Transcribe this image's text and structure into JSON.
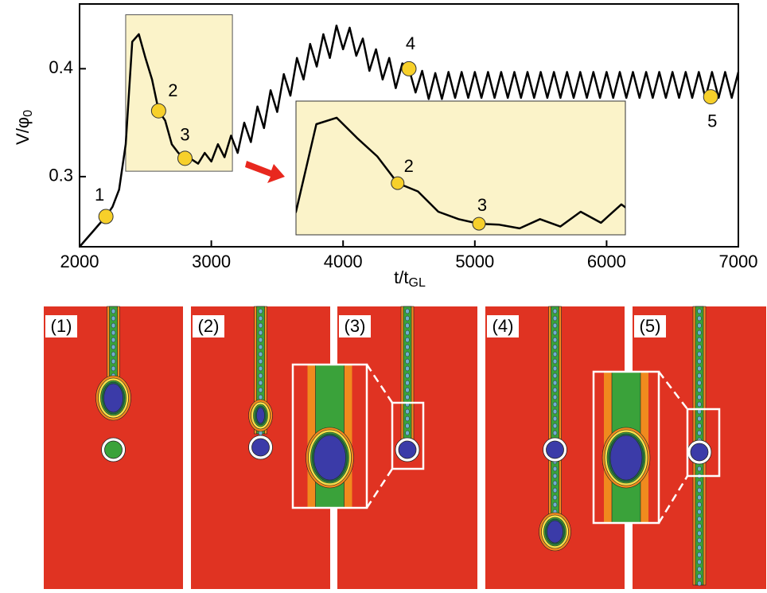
{
  "chart_data": {
    "type": "line",
    "ylabel": {
      "text": "V/φ",
      "sub": "0"
    },
    "xlabel": {
      "text": "t/t",
      "sub": "GL"
    },
    "xlim": [
      2000,
      7000
    ],
    "ylim": [
      0.235,
      0.46
    ],
    "xticks": [
      2000,
      3000,
      4000,
      5000,
      6000,
      7000
    ],
    "yticks": [
      0.3,
      0.4
    ],
    "x": [
      2000,
      2050,
      2100,
      2150,
      2200,
      2250,
      2300,
      2350,
      2400,
      2450,
      2500,
      2550,
      2600,
      2650,
      2700,
      2750,
      2800,
      2850,
      2900,
      2950,
      3000,
      3050,
      3100,
      3150,
      3200,
      3250,
      3300,
      3350,
      3400,
      3450,
      3500,
      3550,
      3600,
      3650,
      3700,
      3750,
      3800,
      3850,
      3900,
      3950,
      4000,
      4050,
      4100,
      4150,
      4200,
      4250,
      4300,
      4350,
      4400,
      4450,
      4500,
      4550,
      4600,
      4650,
      4700,
      4750,
      4800,
      4850,
      4900,
      4950,
      5000,
      5050,
      5100,
      5150,
      5200,
      5250,
      5300,
      5350,
      5400,
      5450,
      5500,
      5550,
      5600,
      5650,
      5700,
      5750,
      5800,
      5850,
      5900,
      5950,
      6000,
      6050,
      6100,
      6150,
      6200,
      6250,
      6300,
      6350,
      6400,
      6450,
      6500,
      6550,
      6600,
      6650,
      6700,
      6750,
      6800,
      6850,
      6900,
      6950,
      7000
    ],
    "series": [
      {
        "color": "#000000",
        "values": [
          0.235,
          0.242,
          0.249,
          0.256,
          0.263,
          0.272,
          0.288,
          0.33,
          0.425,
          0.432,
          0.41,
          0.39,
          0.361,
          0.352,
          0.33,
          0.322,
          0.317,
          0.316,
          0.312,
          0.322,
          0.314,
          0.33,
          0.318,
          0.338,
          0.322,
          0.35,
          0.332,
          0.365,
          0.345,
          0.38,
          0.36,
          0.395,
          0.375,
          0.41,
          0.39,
          0.423,
          0.402,
          0.432,
          0.41,
          0.44,
          0.418,
          0.438,
          0.412,
          0.428,
          0.398,
          0.418,
          0.39,
          0.41,
          0.382,
          0.405,
          0.4,
          0.378,
          0.398,
          0.372,
          0.396,
          0.372,
          0.397,
          0.373,
          0.397,
          0.373,
          0.397,
          0.373,
          0.397,
          0.373,
          0.397,
          0.373,
          0.397,
          0.373,
          0.397,
          0.373,
          0.397,
          0.373,
          0.397,
          0.373,
          0.397,
          0.373,
          0.397,
          0.373,
          0.397,
          0.373,
          0.397,
          0.373,
          0.397,
          0.373,
          0.397,
          0.373,
          0.397,
          0.373,
          0.397,
          0.373,
          0.397,
          0.373,
          0.397,
          0.373,
          0.397,
          0.373,
          0.397,
          0.373,
          0.397,
          0.373,
          0.397
        ]
      }
    ],
    "points": {
      "color": "#f7d02a",
      "labels": [
        "1",
        "2",
        "3",
        "4",
        "5"
      ],
      "x": [
        2200,
        2600,
        2800,
        4500,
        6790
      ],
      "values": [
        0.263,
        0.361,
        0.317,
        0.4,
        0.374
      ]
    },
    "inset": {
      "xlim": [
        2350,
        3160
      ],
      "ylim": [
        0.305,
        0.45
      ]
    },
    "panels": [
      "(1)",
      "(2)",
      "(3)",
      "(4)",
      "(5)"
    ]
  }
}
